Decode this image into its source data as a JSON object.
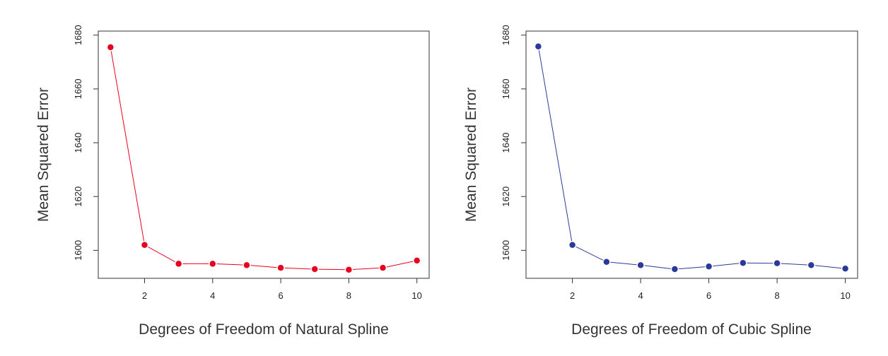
{
  "chart_data": [
    {
      "type": "line",
      "xlabel": "Degrees of Freedom of Natural Spline",
      "ylabel": "Mean Squared Error",
      "x": [
        1,
        2,
        3,
        4,
        5,
        6,
        7,
        8,
        9,
        10
      ],
      "series": [
        {
          "name": "Natural Spline",
          "values": [
            1675.5,
            1602,
            1595,
            1595,
            1594.5,
            1593.5,
            1593,
            1592.8,
            1593.5,
            1596.2
          ],
          "color": "#e8001c"
        }
      ],
      "xticks": [
        2,
        4,
        6,
        8,
        10
      ],
      "yticks": [
        1600,
        1620,
        1640,
        1660,
        1680
      ],
      "xlim": [
        0.64,
        10.36
      ],
      "ylim": [
        1589.6,
        1681.5
      ],
      "grid": false
    },
    {
      "type": "line",
      "xlabel": "Degrees of Freedom of Cubic Spline",
      "ylabel": "Mean Squared Error",
      "x": [
        1,
        2,
        3,
        4,
        5,
        6,
        7,
        8,
        9,
        10
      ],
      "series": [
        {
          "name": "Cubic Spline",
          "values": [
            1675.8,
            1602,
            1595.7,
            1594.5,
            1593,
            1594,
            1595.3,
            1595.2,
            1594.5,
            1593.2
          ],
          "color": "#2b3a9a"
        }
      ],
      "xticks": [
        2,
        4,
        6,
        8,
        10
      ],
      "yticks": [
        1600,
        1620,
        1640,
        1660,
        1680
      ],
      "xlim": [
        0.64,
        10.36
      ],
      "ylim": [
        1589.6,
        1681.5
      ],
      "grid": false
    }
  ]
}
